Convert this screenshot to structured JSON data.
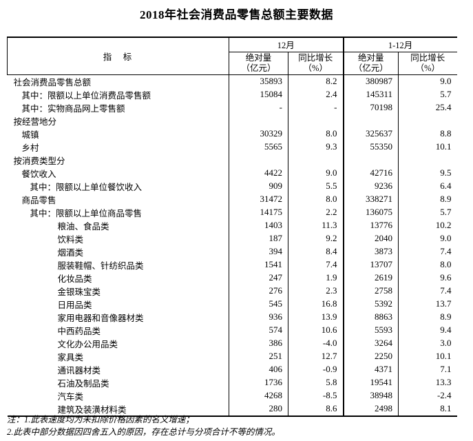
{
  "title": "2018年社会消费品零售总额主要数据",
  "table": {
    "header": {
      "indicator": "指　标",
      "group_dec": "12月",
      "group_ytd": "1-12月",
      "sub_abs_dec": "绝对量\n（亿元）",
      "sub_yoy_dec": "同比增长\n（%）",
      "sub_abs_ytd": "绝对量\n（亿元）",
      "sub_yoy_ytd": "同比增长\n（%）"
    },
    "rows": [
      {
        "label": "社会消费品零售总额",
        "indent": 0,
        "dec_abs": "35893",
        "dec_yoy": "8.2",
        "ytd_abs": "380987",
        "ytd_yoy": "9.0"
      },
      {
        "label": "其中：限额以上单位消费品零售额",
        "indent": 1,
        "dec_abs": "15084",
        "dec_yoy": "2.4",
        "ytd_abs": "145311",
        "ytd_yoy": "5.7"
      },
      {
        "label": "其中：实物商品网上零售额",
        "indent": 1,
        "dec_abs": "-",
        "dec_yoy": "-",
        "ytd_abs": "70198",
        "ytd_yoy": "25.4"
      },
      {
        "label": "按经营地分",
        "indent": 0,
        "dec_abs": "",
        "dec_yoy": "",
        "ytd_abs": "",
        "ytd_yoy": ""
      },
      {
        "label": "城镇",
        "indent": 1,
        "dec_abs": "30329",
        "dec_yoy": "8.0",
        "ytd_abs": "325637",
        "ytd_yoy": "8.8"
      },
      {
        "label": "乡村",
        "indent": 1,
        "dec_abs": "5565",
        "dec_yoy": "9.3",
        "ytd_abs": "55350",
        "ytd_yoy": "10.1"
      },
      {
        "label": "按消费类型分",
        "indent": 0,
        "dec_abs": "",
        "dec_yoy": "",
        "ytd_abs": "",
        "ytd_yoy": ""
      },
      {
        "label": "餐饮收入",
        "indent": 1,
        "dec_abs": "4422",
        "dec_yoy": "9.0",
        "ytd_abs": "42716",
        "ytd_yoy": "9.5"
      },
      {
        "label": "其中：限额以上单位餐饮收入",
        "indent": 2,
        "dec_abs": "909",
        "dec_yoy": "5.5",
        "ytd_abs": "9236",
        "ytd_yoy": "6.4"
      },
      {
        "label": "商品零售",
        "indent": 1,
        "dec_abs": "31472",
        "dec_yoy": "8.0",
        "ytd_abs": "338271",
        "ytd_yoy": "8.9"
      },
      {
        "label": "其中：限额以上单位商品零售",
        "indent": 2,
        "dec_abs": "14175",
        "dec_yoy": "2.2",
        "ytd_abs": "136075",
        "ytd_yoy": "5.7"
      },
      {
        "label": "粮油、食品类",
        "indent": 3,
        "dec_abs": "1403",
        "dec_yoy": "11.3",
        "ytd_abs": "13776",
        "ytd_yoy": "10.2"
      },
      {
        "label": "饮料类",
        "indent": 3,
        "dec_abs": "187",
        "dec_yoy": "9.2",
        "ytd_abs": "2040",
        "ytd_yoy": "9.0"
      },
      {
        "label": "烟酒类",
        "indent": 3,
        "dec_abs": "394",
        "dec_yoy": "8.4",
        "ytd_abs": "3873",
        "ytd_yoy": "7.4"
      },
      {
        "label": "服装鞋帽、针纺织品类",
        "indent": 3,
        "dec_abs": "1541",
        "dec_yoy": "7.4",
        "ytd_abs": "13707",
        "ytd_yoy": "8.0"
      },
      {
        "label": "化妆品类",
        "indent": 3,
        "dec_abs": "247",
        "dec_yoy": "1.9",
        "ytd_abs": "2619",
        "ytd_yoy": "9.6"
      },
      {
        "label": "金银珠宝类",
        "indent": 3,
        "dec_abs": "276",
        "dec_yoy": "2.3",
        "ytd_abs": "2758",
        "ytd_yoy": "7.4"
      },
      {
        "label": "日用品类",
        "indent": 3,
        "dec_abs": "545",
        "dec_yoy": "16.8",
        "ytd_abs": "5392",
        "ytd_yoy": "13.7"
      },
      {
        "label": "家用电器和音像器材类",
        "indent": 3,
        "dec_abs": "936",
        "dec_yoy": "13.9",
        "ytd_abs": "8863",
        "ytd_yoy": "8.9"
      },
      {
        "label": "中西药品类",
        "indent": 3,
        "dec_abs": "574",
        "dec_yoy": "10.6",
        "ytd_abs": "5593",
        "ytd_yoy": "9.4"
      },
      {
        "label": "文化办公用品类",
        "indent": 3,
        "dec_abs": "386",
        "dec_yoy": "-4.0",
        "ytd_abs": "3264",
        "ytd_yoy": "3.0"
      },
      {
        "label": "家具类",
        "indent": 3,
        "dec_abs": "251",
        "dec_yoy": "12.7",
        "ytd_abs": "2250",
        "ytd_yoy": "10.1"
      },
      {
        "label": "通讯器材类",
        "indent": 3,
        "dec_abs": "406",
        "dec_yoy": "-0.9",
        "ytd_abs": "4371",
        "ytd_yoy": "7.1"
      },
      {
        "label": "石油及制品类",
        "indent": 3,
        "dec_abs": "1736",
        "dec_yoy": "5.8",
        "ytd_abs": "19541",
        "ytd_yoy": "13.3"
      },
      {
        "label": "汽车类",
        "indent": 3,
        "dec_abs": "4268",
        "dec_yoy": "-8.5",
        "ytd_abs": "38948",
        "ytd_yoy": "-2.4"
      },
      {
        "label": "建筑及装潢材料类",
        "indent": 3,
        "dec_abs": "280",
        "dec_yoy": "8.6",
        "ytd_abs": "2498",
        "ytd_yoy": "8.1"
      }
    ]
  },
  "notes": {
    "note1": "注：1.此表速度均为未扣除价格因素的名义增速；",
    "note2": "2.此表中部分数据因四舍五入的原因，存在总计与分项合计不等的情况。"
  }
}
